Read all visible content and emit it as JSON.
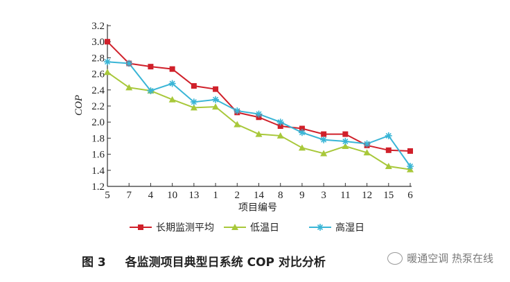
{
  "chart_data": {
    "type": "line",
    "categories": [
      "5",
      "7",
      "4",
      "10",
      "13",
      "1",
      "2",
      "14",
      "8",
      "9",
      "3",
      "11",
      "12",
      "15",
      "6"
    ],
    "series": [
      {
        "name": "长期监测平均",
        "color": "#d0202a",
        "marker": "square",
        "values": [
          3.0,
          2.73,
          2.69,
          2.66,
          2.45,
          2.41,
          2.12,
          2.06,
          1.95,
          1.92,
          1.85,
          1.85,
          1.71,
          1.65,
          1.64
        ]
      },
      {
        "name": "低温日",
        "color": "#a8c83a",
        "marker": "triangle",
        "values": [
          2.62,
          2.43,
          2.39,
          2.28,
          2.18,
          2.19,
          1.97,
          1.85,
          1.83,
          1.68,
          1.61,
          1.7,
          1.62,
          1.45,
          1.41
        ]
      },
      {
        "name": "高湿日",
        "color": "#39b5d6",
        "marker": "star",
        "values": [
          2.75,
          2.73,
          2.39,
          2.48,
          2.25,
          2.28,
          2.14,
          2.1,
          2.0,
          1.87,
          1.78,
          1.76,
          1.73,
          1.83,
          1.45
        ]
      }
    ],
    "xlabel": "项目编号",
    "ylabel": "COP",
    "ylim": [
      1.2,
      3.2
    ],
    "yticks": [
      "1.2",
      "1.4",
      "1.6",
      "1.8",
      "2.0",
      "2.2",
      "2.4",
      "2.6",
      "2.8",
      "3.0",
      "3.2"
    ],
    "grid": false,
    "legend_position": "bottom"
  },
  "caption": {
    "figure_number": "图 3",
    "title": "各监测项目典型日系统 COP 对比分析"
  },
  "watermark": {
    "text": "暖通空调 热泵在线"
  }
}
